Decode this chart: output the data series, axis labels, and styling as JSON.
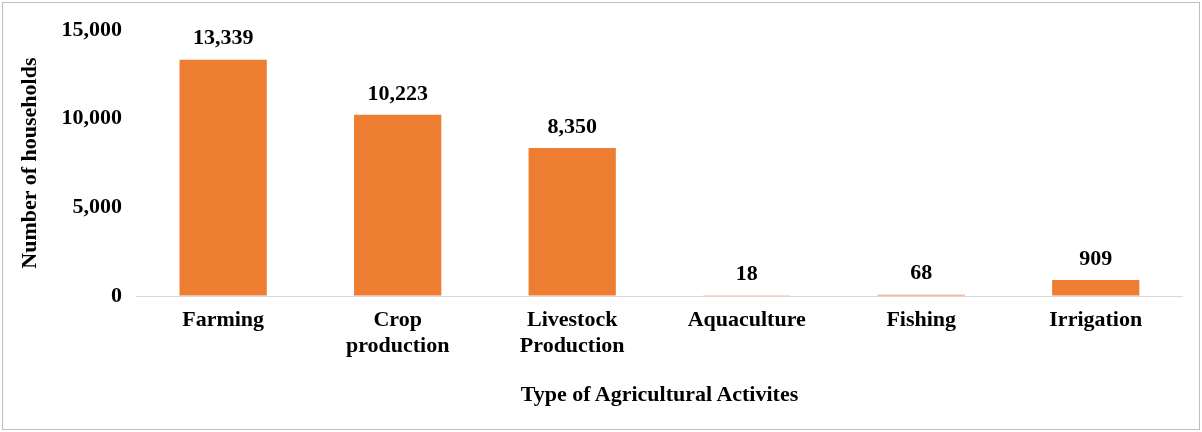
{
  "chart_data": {
    "type": "bar",
    "categories": [
      "Farming",
      "Crop production",
      "Livestock Production",
      "Aquaculture",
      "Fishing",
      "Irrigation"
    ],
    "values": [
      13339,
      10223,
      8350,
      18,
      68,
      909
    ],
    "color": "#ed7d31",
    "ylim": [
      0,
      15000
    ],
    "yticks": [
      {
        "value": 0,
        "label": "0"
      },
      {
        "value": 5000,
        "label": "5,000"
      },
      {
        "value": 10000,
        "label": "10,000"
      },
      {
        "value": 15000,
        "label": "15,000"
      }
    ],
    "grid": false,
    "legend": false,
    "value_labels": [
      "13,339",
      "10,223",
      "8,350",
      "18",
      "68",
      "909"
    ],
    "xlabel": "Type of Agricultural Activites",
    "ylabel": "Number of households"
  }
}
